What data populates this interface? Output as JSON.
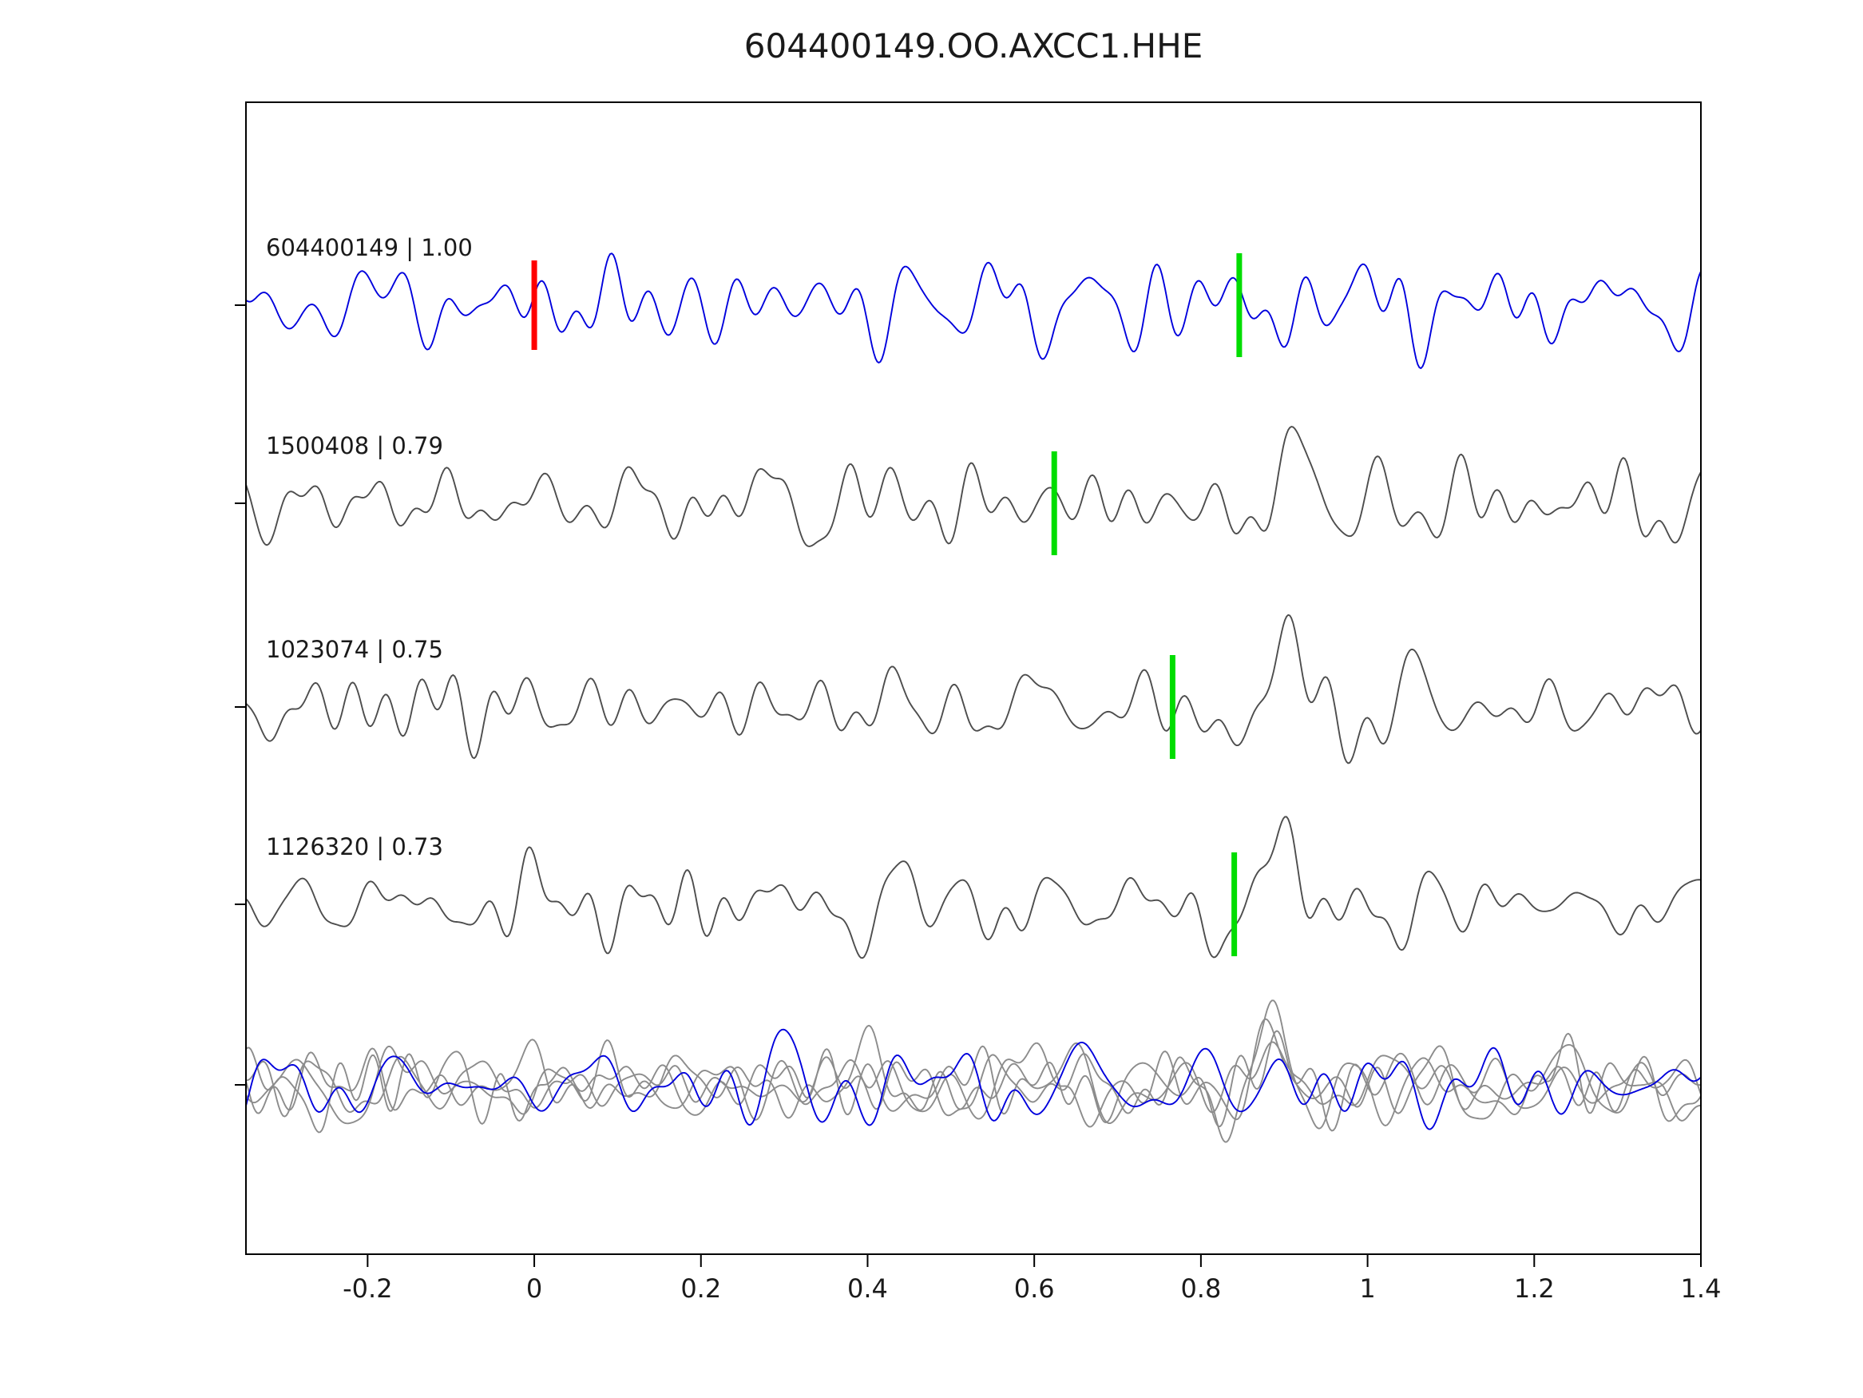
{
  "chart_data": {
    "type": "line",
    "title": "604400149.OO.AXCC1.HHE",
    "xlim": [
      -0.346,
      1.4
    ],
    "ylim_rows": 5,
    "grid": false,
    "legend": "none",
    "x_ticks": [
      {
        "v": -0.2,
        "label": "-0.2"
      },
      {
        "v": 0,
        "label": "0"
      },
      {
        "v": 0.2,
        "label": "0.2"
      },
      {
        "v": 0.4,
        "label": "0.4"
      },
      {
        "v": 0.6,
        "label": "0.6"
      },
      {
        "v": 0.8,
        "label": "0.8"
      },
      {
        "v": 1,
        "label": "1"
      },
      {
        "v": 1.2,
        "label": "1.2"
      },
      {
        "v": 1.4,
        "label": "1.4"
      }
    ],
    "traces": [
      {
        "name": "604400149",
        "label": "604400149 | 1.00",
        "correlation": 1.0,
        "color": "#0000dd",
        "row": 0,
        "seed": 7,
        "red_pick_x": 0.0,
        "green_pick_x": 0.846,
        "packet": {
          "t0": 0.55,
          "w": 0.14,
          "amp": 1.9,
          "f": 9.0
        }
      },
      {
        "name": "1500408",
        "label": "1500408 | 0.79",
        "correlation": 0.79,
        "color": "#4d4d4d",
        "row": 1,
        "seed": 13,
        "green_pick_x": 0.624,
        "packet": {
          "t0": 0.9,
          "w": 0.07,
          "amp": 3.0,
          "f": 6.5
        }
      },
      {
        "name": "1023074",
        "label": "1023074 | 0.75",
        "correlation": 0.75,
        "color": "#4d4d4d",
        "row": 2,
        "seed": 21,
        "green_pick_x": 0.766,
        "packet": {
          "t0": 0.9,
          "w": 0.07,
          "amp": 3.2,
          "f": 6.5
        }
      },
      {
        "name": "1126320",
        "label": "1126320 | 0.73",
        "correlation": 0.73,
        "color": "#4d4d4d",
        "row": 3,
        "seed": 34,
        "green_pick_x": 0.84,
        "packet": {
          "t0": 0.87,
          "w": 0.07,
          "amp": 3.4,
          "f": 6.0
        }
      }
    ],
    "overlay": {
      "row": 4,
      "gray_color": "#8c8c8c",
      "blue_color": "#0000dd",
      "gray_seeds": [
        41,
        42,
        43,
        44
      ],
      "blue_seed": 55,
      "packet": {
        "t0": 0.88,
        "w": 0.07,
        "amp": 2.6,
        "f": 6.5
      }
    },
    "marker_colors": {
      "pick_green": "#00dd00",
      "zero_red": "#ff0000"
    },
    "axis_color": "#000000",
    "background": "#ffffff"
  }
}
